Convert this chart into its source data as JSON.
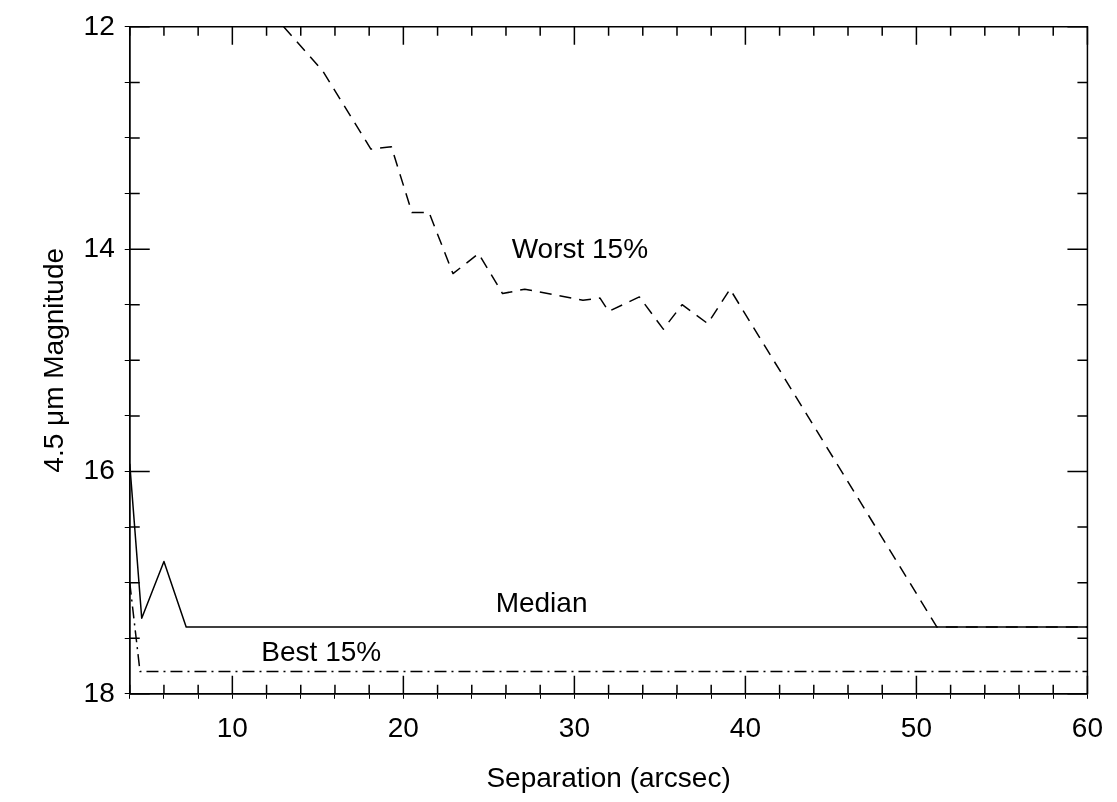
{
  "chart_data": {
    "type": "line",
    "xlabel": "Separation (arcsec)",
    "ylabel": "4.5 μm Magnitude",
    "xlim": [
      4,
      60
    ],
    "ylim": [
      18,
      12
    ],
    "xticks": [
      {
        "value": 4,
        "label": null
      },
      {
        "value": 6,
        "label": null
      },
      {
        "value": 8,
        "label": null
      },
      10,
      {
        "value": 12,
        "label": null
      },
      {
        "value": 14,
        "label": null
      },
      {
        "value": 16,
        "label": null
      },
      {
        "value": 18,
        "label": null
      },
      20,
      {
        "value": 22,
        "label": null
      },
      {
        "value": 24,
        "label": null
      },
      {
        "value": 26,
        "label": null
      },
      {
        "value": 28,
        "label": null
      },
      30,
      {
        "value": 32,
        "label": null
      },
      {
        "value": 34,
        "label": null
      },
      {
        "value": 36,
        "label": null
      },
      {
        "value": 38,
        "label": null
      },
      40,
      {
        "value": 42,
        "label": null
      },
      {
        "value": 44,
        "label": null
      },
      {
        "value": 46,
        "label": null
      },
      {
        "value": 48,
        "label": null
      },
      50,
      {
        "value": 52,
        "label": null
      },
      {
        "value": 54,
        "label": null
      },
      {
        "value": 56,
        "label": null
      },
      {
        "value": 58,
        "label": null
      },
      60
    ],
    "yticks": [
      12,
      {
        "value": 12.5,
        "label": null
      },
      {
        "value": 13,
        "label": null
      },
      {
        "value": 13.5,
        "label": null
      },
      14,
      {
        "value": 14.5,
        "label": null
      },
      {
        "value": 15,
        "label": null
      },
      {
        "value": 15.5,
        "label": null
      },
      16,
      {
        "value": 16.5,
        "label": null
      },
      {
        "value": 17,
        "label": null
      },
      {
        "value": 17.5,
        "label": null
      },
      18
    ],
    "grid": false,
    "legend": false,
    "marker": "none",
    "series": [
      {
        "color": "#000000",
        "line_style": "dashed",
        "x": [
          13.0,
          15.3,
          18.1,
          19.3,
          20.5,
          21.5,
          22.9,
          24.4,
          25.8,
          27.1,
          30.5,
          31.5,
          32.0,
          33.8,
          35.2,
          36.3,
          37.8,
          39.1,
          51.2,
          60
        ],
        "values": [
          12.0,
          12.4,
          13.1,
          13.08,
          13.67,
          13.67,
          14.22,
          14.04,
          14.4,
          14.36,
          14.46,
          14.44,
          14.56,
          14.43,
          14.72,
          14.5,
          14.67,
          14.36,
          17.4,
          17.4
        ]
      },
      {
        "color": "#000000",
        "line_style": "solid",
        "x": [
          4.0,
          4.7,
          6.0,
          7.3,
          60
        ],
        "values": [
          15.93,
          17.32,
          16.81,
          17.4,
          17.4
        ]
      },
      {
        "color": "#000000",
        "line_style": "dashdot",
        "x": [
          4.0,
          4.6,
          60
        ],
        "values": [
          17.0,
          17.8,
          17.8
        ]
      }
    ],
    "annotations": [
      "Worst 15%",
      "Median",
      "Best 15%"
    ]
  }
}
